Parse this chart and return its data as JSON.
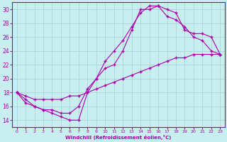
{
  "xlabel": "Windchill (Refroidissement éolien,°C)",
  "bg_color": "#c8eef0",
  "grid_color": "#b0d8d8",
  "line_color": "#aa00aa",
  "spine_color": "#aa00aa",
  "xlim": [
    -0.5,
    23.5
  ],
  "ylim": [
    13,
    31
  ],
  "yticks": [
    14,
    16,
    18,
    20,
    22,
    24,
    26,
    28,
    30
  ],
  "xticks": [
    0,
    1,
    2,
    3,
    4,
    5,
    6,
    7,
    8,
    9,
    10,
    11,
    12,
    13,
    14,
    15,
    16,
    17,
    18,
    19,
    20,
    21,
    22,
    23
  ],
  "line1_x": [
    0,
    1,
    2,
    3,
    4,
    5,
    6,
    7,
    8,
    9,
    10,
    11,
    12,
    13,
    14,
    15,
    16,
    17,
    18,
    19,
    20,
    21,
    22,
    23
  ],
  "line1_y": [
    18,
    17,
    16,
    15.5,
    15,
    14.5,
    14,
    14,
    18,
    20,
    21.5,
    22,
    24,
    27,
    30,
    30,
    30.5,
    29,
    28.5,
    27.5,
    26,
    25.5,
    24,
    23.5
  ],
  "line2_x": [
    0,
    1,
    2,
    3,
    4,
    5,
    6,
    7,
    8,
    9,
    10,
    11,
    12,
    13,
    14,
    15,
    16,
    17,
    18,
    19,
    20,
    21,
    22,
    23
  ],
  "line2_y": [
    18,
    16.5,
    16,
    15.5,
    15.5,
    15,
    15,
    16,
    18.5,
    20,
    22.5,
    24,
    25.5,
    27.5,
    29.5,
    30.5,
    30.5,
    30,
    29.5,
    27,
    26.5,
    26.5,
    26,
    23.5
  ],
  "line3_x": [
    0,
    1,
    2,
    3,
    4,
    5,
    6,
    7,
    8,
    9,
    10,
    11,
    12,
    13,
    14,
    15,
    16,
    17,
    18,
    19,
    20,
    21,
    22,
    23
  ],
  "line3_y": [
    18,
    17.5,
    17,
    17,
    17,
    17,
    17.5,
    17.5,
    18,
    18.5,
    19,
    19.5,
    20,
    20.5,
    21,
    21.5,
    22,
    22.5,
    23,
    23,
    23.5,
    23.5,
    23.5,
    23.5
  ]
}
